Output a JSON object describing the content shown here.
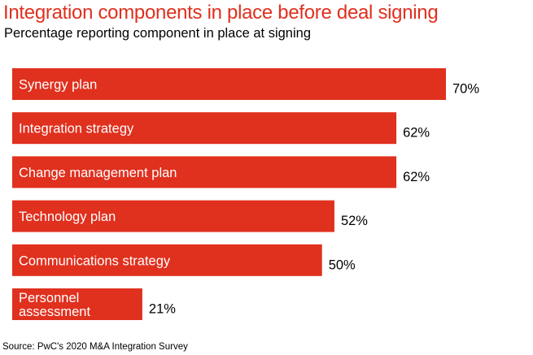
{
  "chart_data": {
    "type": "bar",
    "orientation": "horizontal",
    "title": "Integration components in place before deal signing",
    "subtitle": "Percentage reporting component in place at signing",
    "categories": [
      "Synergy plan",
      "Integration strategy",
      "Change management plan",
      "Technology plan",
      "Communications strategy",
      "Personnel assessment"
    ],
    "values": [
      70,
      62,
      62,
      52,
      50,
      21
    ],
    "value_labels": [
      "70%",
      "62%",
      "62%",
      "52%",
      "50%",
      "21%"
    ],
    "xlim": [
      0,
      70
    ],
    "grid": false,
    "source": "Source: PwC's 2020 M&A Integration Survey",
    "bar_color": "#e0301e"
  }
}
